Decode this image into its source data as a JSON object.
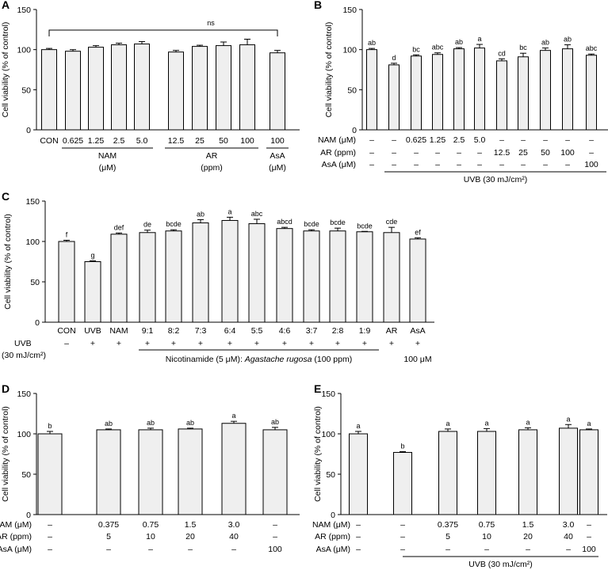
{
  "chart_data": [
    {
      "panel": "A",
      "type": "bar",
      "ylabel": "Cell viability (% of control)",
      "ylim": [
        0,
        150
      ],
      "yticks": [
        "0",
        "50",
        "100",
        "150"
      ],
      "categories": [
        "CON",
        "0.625",
        "1.25",
        "2.5",
        "5.0",
        "12.5",
        "25",
        "50",
        "100",
        "100"
      ],
      "values": [
        100,
        98,
        103,
        106,
        107,
        97,
        104,
        105,
        106,
        96
      ],
      "errors": [
        1.5,
        2,
        2,
        2,
        3,
        2,
        1.5,
        4.5,
        7,
        3
      ],
      "groups": [
        {
          "line1": "NAM",
          "line2": "(μM)",
          "from": 1,
          "to": 4
        },
        {
          "line1": "AR",
          "line2": "(ppm)",
          "from": 5,
          "to": 8
        },
        {
          "line1": "AsA",
          "line2": "(μM)",
          "from": 9,
          "to": 9
        }
      ],
      "ns": "ns"
    },
    {
      "panel": "B",
      "type": "bar",
      "ylabel": "Cell viability (% of control)",
      "ylim": [
        0,
        150
      ],
      "yticks": [
        "0",
        "50",
        "100",
        "150"
      ],
      "values": [
        100,
        81,
        92,
        94,
        101,
        102,
        86,
        91,
        99,
        101,
        93
      ],
      "errors": [
        1.5,
        2,
        1.5,
        2,
        1.5,
        4.5,
        2.5,
        4.5,
        3,
        5,
        1.5
      ],
      "letters": [
        "ab",
        "d",
        "bc",
        "abc",
        "ab",
        "a",
        "cd",
        "bc",
        "ab",
        "ab",
        "abc"
      ],
      "rows": [
        {
          "label": "NAM (μM)",
          "cells": [
            "–",
            "–",
            "0.625",
            "1.25",
            "2.5",
            "5.0",
            "–",
            "–",
            "–",
            "–",
            "–"
          ]
        },
        {
          "label": "AR (ppm)",
          "cells": [
            "–",
            "–",
            "–",
            "–",
            "–",
            "–",
            "12.5",
            "25",
            "50",
            "100",
            "–"
          ]
        },
        {
          "label": "AsA (μM)",
          "cells": [
            "–",
            "–",
            "–",
            "–",
            "–",
            "–",
            "–",
            "–",
            "–",
            "–",
            "100"
          ]
        }
      ],
      "uvb": "UVB (30 mJ/cm²)"
    },
    {
      "panel": "C",
      "type": "bar",
      "ylabel": "Cell viability (% of control)",
      "ylim": [
        0,
        150
      ],
      "yticks": [
        "0",
        "50",
        "100",
        "150"
      ],
      "categories": [
        "CON",
        "UVB",
        "NAM",
        "9:1",
        "8:2",
        "7:3",
        "6:4",
        "5:5",
        "4:6",
        "3:7",
        "2:8",
        "1:9",
        "AR",
        "AsA"
      ],
      "values": [
        100,
        75,
        109,
        111,
        113,
        123,
        126,
        122,
        116,
        113,
        113,
        112,
        111,
        103
      ],
      "errors": [
        1.5,
        1,
        1.5,
        3,
        1.5,
        4,
        4,
        5.5,
        1.5,
        1.5,
        3.5,
        0.5,
        6.5,
        1.5
      ],
      "letters": [
        "f",
        "g",
        "def",
        "de",
        "bcde",
        "ab",
        "a",
        "abc",
        "abcd",
        "bcde",
        "bcde",
        "bcde",
        "cde",
        "ef"
      ],
      "uvb_label": "UVB",
      "uvb_dose": "(30 mJ/cm²)",
      "uvb_signs": [
        "–",
        "+",
        "+",
        "+",
        "+",
        "+",
        "+",
        "+",
        "+",
        "+",
        "+",
        "+",
        "+",
        "+"
      ],
      "note_prefix": "Nicotinamide (5 μM): ",
      "note_species": "Agastache rugosa",
      "note_suffix": " (100 ppm)",
      "asa_dose": "100 μM"
    },
    {
      "panel": "D",
      "type": "bar",
      "ylabel": "Cell viability (% of control)",
      "ylim": [
        0,
        150
      ],
      "yticks": [
        "0",
        "50",
        "100",
        "150"
      ],
      "values": [
        100,
        105,
        105,
        106,
        113,
        105
      ],
      "errors": [
        3,
        1,
        2,
        1,
        2.5,
        3
      ],
      "letters": [
        "b",
        "ab",
        "ab",
        "ab",
        "a",
        "ab"
      ],
      "rows": [
        {
          "label": "NAM (μM)",
          "cells": [
            "–",
            "0.375",
            "0.75",
            "1.5",
            "3.0",
            "–"
          ]
        },
        {
          "label": "AR (ppm)",
          "cells": [
            "–",
            "5",
            "10",
            "20",
            "40",
            "–"
          ]
        },
        {
          "label": "AsA (μM)",
          "cells": [
            "–",
            "–",
            "–",
            "–",
            "–",
            "100"
          ]
        }
      ]
    },
    {
      "panel": "E",
      "type": "bar",
      "ylabel": "Cell viability (% of control)",
      "ylim": [
        0,
        150
      ],
      "yticks": [
        "0",
        "50",
        "100",
        "150"
      ],
      "values": [
        100,
        77,
        103,
        103,
        105,
        107,
        105
      ],
      "errors": [
        3,
        1,
        3,
        3.5,
        2.5,
        4.5,
        1
      ],
      "letters": [
        "a",
        "b",
        "a",
        "a",
        "a",
        "a",
        "a"
      ],
      "rows": [
        {
          "label": "NAM (μM)",
          "cells": [
            "–",
            "–",
            "0.375",
            "0.75",
            "1.5",
            "3.0",
            "–"
          ]
        },
        {
          "label": "AR (ppm)",
          "cells": [
            "–",
            "–",
            "5",
            "10",
            "20",
            "40",
            "–"
          ]
        },
        {
          "label": "AsA (μM)",
          "cells": [
            "–",
            "–",
            "–",
            "–",
            "–",
            "–",
            "100"
          ]
        }
      ],
      "uvb": "UVB (30 mJ/cm²)"
    }
  ]
}
